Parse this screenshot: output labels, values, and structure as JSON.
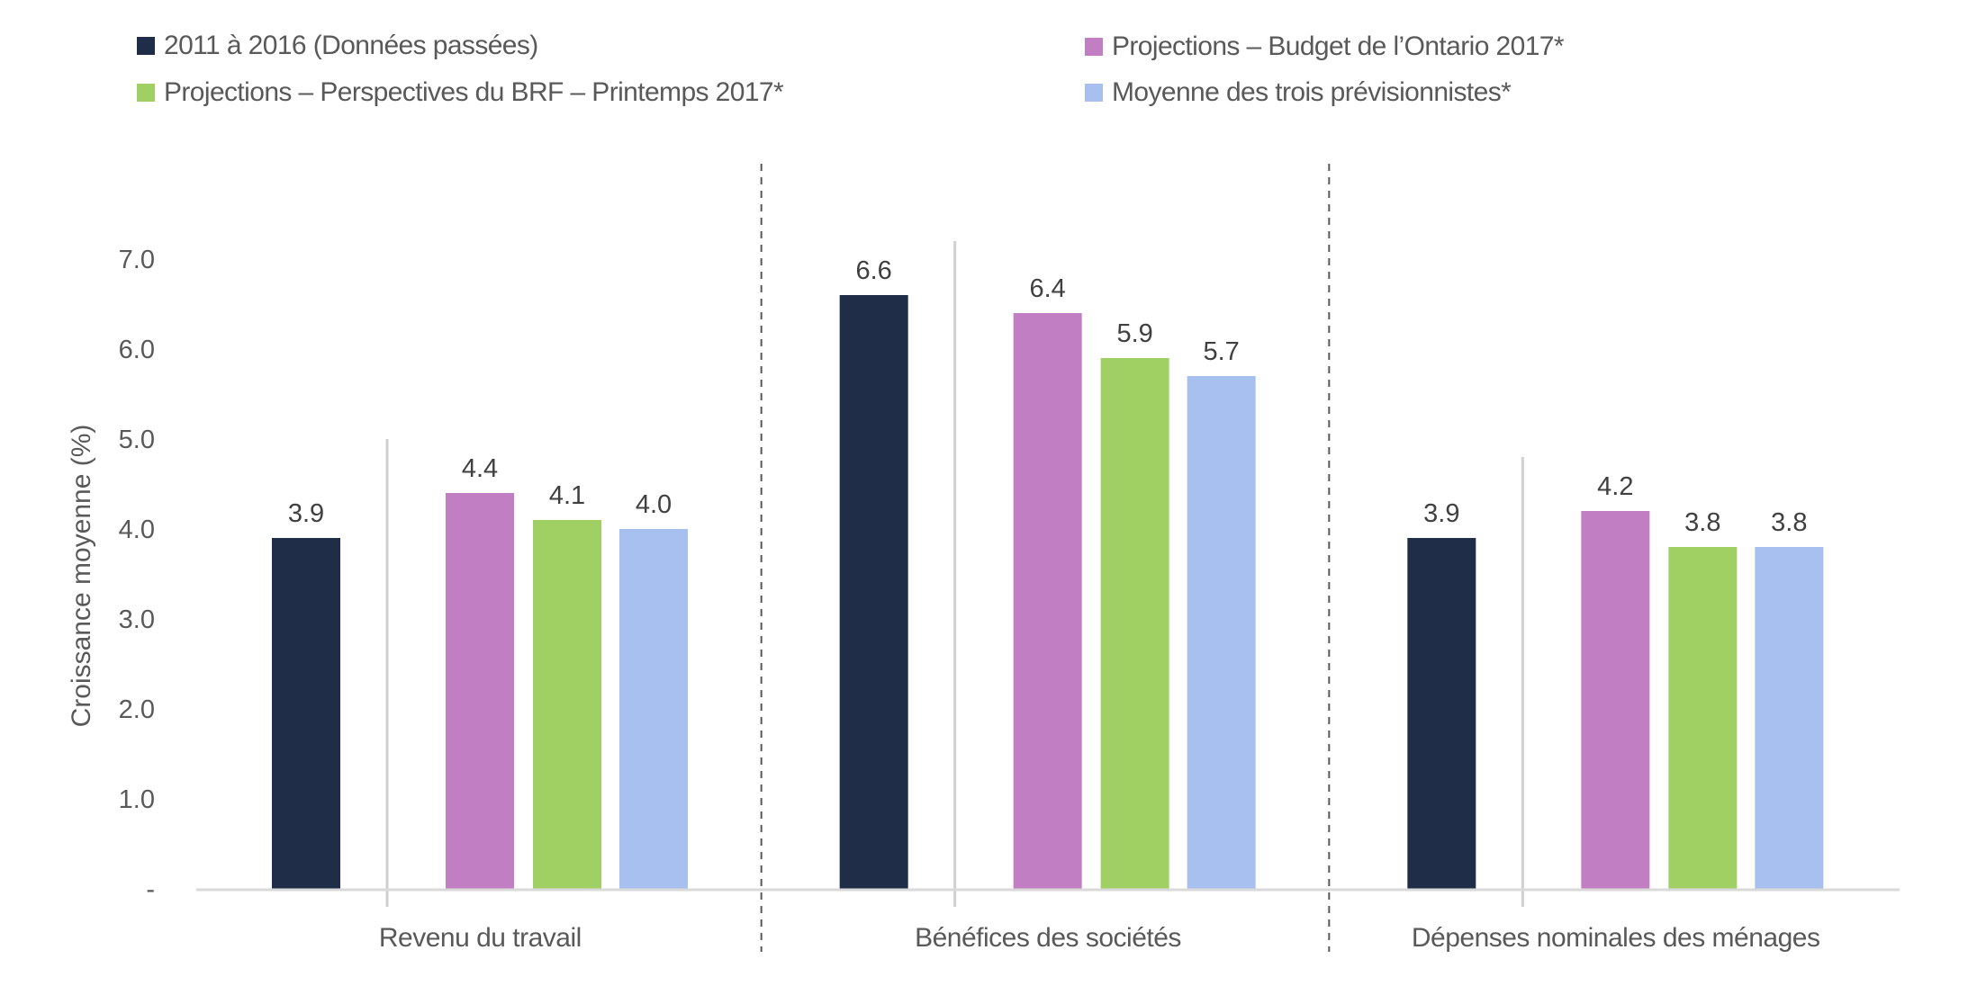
{
  "chart_data": {
    "type": "bar",
    "title": "",
    "xlabel": "",
    "ylabel": "Croissance moyenne (%)",
    "ylim": [
      0,
      7
    ],
    "yticks": [
      0,
      1,
      2,
      3,
      4,
      5,
      6,
      7
    ],
    "ytick_labels": [
      "-",
      "1.0",
      "2.0",
      "3.0",
      "4.0",
      "5.0",
      "6.0",
      "7.0"
    ],
    "grid": false,
    "legend_position": "top",
    "categories": [
      "Revenu du travail",
      "Bénéfices des sociétés",
      "Dépenses nominales des ménages"
    ],
    "series": [
      {
        "name": "2011 à 2016 (Données passées)",
        "color": "#1F2D49",
        "values": [
          3.9,
          6.6,
          3.9
        ],
        "labels": [
          "3.9",
          "6.6",
          "3.9"
        ]
      },
      {
        "name": "Projections – Budget de l’Ontario 2017*",
        "color": "#C27EC2",
        "values": [
          4.4,
          6.4,
          4.2
        ],
        "labels": [
          "4.4",
          "6.4",
          "4.2"
        ]
      },
      {
        "name": "Projections – Perspectives du BRF – Printemps 2017*",
        "color": "#A0CF63",
        "values": [
          4.1,
          5.9,
          3.8
        ],
        "labels": [
          "4.1",
          "5.9",
          "3.8"
        ]
      },
      {
        "name": "Moyenne des trois prévisionnistes*",
        "color": "#A7C0EF",
        "values": [
          4.0,
          5.7,
          3.8
        ],
        "labels": [
          "4.0",
          "5.7",
          "3.8"
        ]
      }
    ]
  },
  "legend": {
    "items": [
      {
        "label": "2011 à 2016 (Données passées)",
        "color": "#1F2D49"
      },
      {
        "label": "Projections – Budget de l’Ontario 2017*",
        "color": "#C27EC2"
      },
      {
        "label": "Projections – Perspectives du BRF – Printemps 2017*",
        "color": "#A0CF63"
      },
      {
        "label": "Moyenne des trois prévisionnistes*",
        "color": "#A7C0EF"
      }
    ]
  }
}
